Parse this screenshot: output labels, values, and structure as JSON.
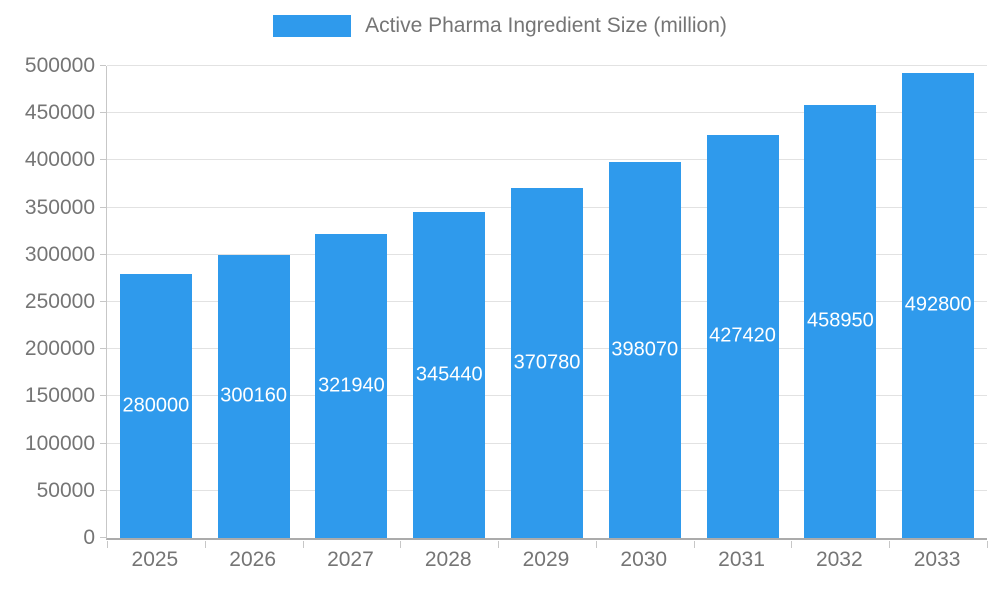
{
  "legend": {
    "label": "Active Pharma Ingredient Size (million)"
  },
  "chart_data": {
    "type": "bar",
    "title": "Active Pharma Ingredient Size (million)",
    "categories": [
      "2025",
      "2026",
      "2027",
      "2028",
      "2029",
      "2030",
      "2031",
      "2032",
      "2033"
    ],
    "values": [
      280000,
      300160,
      321940,
      345440,
      370780,
      398070,
      427420,
      458950,
      492800
    ],
    "value_labels": [
      "280000",
      "300160",
      "321940",
      "345440",
      "370780",
      "398070",
      "427420",
      "458950",
      "492800"
    ],
    "xlabel": "",
    "ylabel": "",
    "ylim": [
      0,
      500000
    ],
    "ytick_step": 50000,
    "y_ticks": [
      "0",
      "50000",
      "100000",
      "150000",
      "200000",
      "250000",
      "300000",
      "350000",
      "400000",
      "450000",
      "500000"
    ],
    "grid": true,
    "legend_position": "top",
    "colors": {
      "bar": "#2F9AEC",
      "value_label": "#ffffff",
      "axis_text": "#757575",
      "gridline": "#e2e2e2",
      "axis_line": "#ababab"
    }
  }
}
